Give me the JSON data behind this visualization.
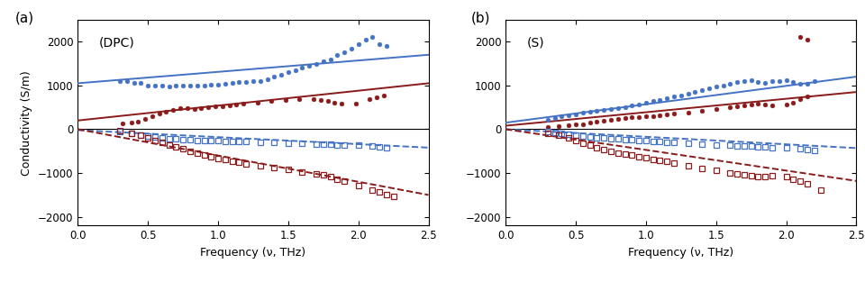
{
  "panel_a_label": "(DPC)",
  "panel_b_label": "(S)",
  "ylabel": "Conductivity (S/m)",
  "xlabel": "Frequency (ν, THz)",
  "xlim": [
    0,
    2.5
  ],
  "ylim": [
    -2200,
    2500
  ],
  "yticks": [
    -2000,
    -1000,
    0,
    1000,
    2000
  ],
  "xticks": [
    0,
    0.5,
    1.0,
    1.5,
    2.0,
    2.5
  ],
  "blue_color": "#4472C4",
  "red_color": "#8B1A1A",
  "panel_a": {
    "blue_solid_real": {
      "x": [
        0.3,
        0.35,
        0.4,
        0.45,
        0.5,
        0.55,
        0.6,
        0.65,
        0.7,
        0.75,
        0.8,
        0.85,
        0.9,
        0.95,
        1.0,
        1.05,
        1.1,
        1.15,
        1.2,
        1.25,
        1.3,
        1.35,
        1.4,
        1.45,
        1.5,
        1.55,
        1.6,
        1.65,
        1.7,
        1.75,
        1.8,
        1.85,
        1.9,
        1.95,
        2.0,
        2.05,
        2.1,
        2.15,
        2.2
      ],
      "y": [
        1100,
        1100,
        1050,
        1050,
        1000,
        1000,
        1000,
        980,
        1000,
        1000,
        1000,
        1000,
        1000,
        1020,
        1020,
        1030,
        1050,
        1080,
        1080,
        1100,
        1100,
        1150,
        1200,
        1250,
        1300,
        1350,
        1400,
        1450,
        1500,
        1550,
        1600,
        1700,
        1750,
        1850,
        1950,
        2050,
        2100,
        1950,
        1900
      ]
    },
    "blue_fit_real": {
      "x": [
        0.0,
        2.5
      ],
      "y": [
        1050,
        1700
      ]
    },
    "red_solid_real": {
      "x": [
        0.32,
        0.38,
        0.43,
        0.48,
        0.53,
        0.58,
        0.63,
        0.68,
        0.73,
        0.78,
        0.83,
        0.88,
        0.93,
        0.98,
        1.03,
        1.08,
        1.13,
        1.18,
        1.28,
        1.38,
        1.48,
        1.58,
        1.68,
        1.73,
        1.78,
        1.83,
        1.88,
        1.98,
        2.08,
        2.13,
        2.18
      ],
      "y": [
        130,
        150,
        180,
        230,
        290,
        350,
        410,
        450,
        480,
        480,
        470,
        490,
        510,
        520,
        530,
        550,
        570,
        580,
        610,
        640,
        660,
        680,
        690,
        670,
        640,
        610,
        590,
        590,
        690,
        720,
        770
      ]
    },
    "red_fit_real": {
      "x": [
        0.0,
        2.5
      ],
      "y": [
        200,
        1050
      ]
    },
    "blue_open_imag": {
      "x": [
        0.3,
        0.38,
        0.45,
        0.5,
        0.55,
        0.6,
        0.65,
        0.7,
        0.75,
        0.8,
        0.85,
        0.9,
        0.95,
        1.0,
        1.05,
        1.1,
        1.15,
        1.2,
        1.3,
        1.4,
        1.5,
        1.6,
        1.7,
        1.75,
        1.8,
        1.85,
        1.9,
        2.0,
        2.1,
        2.15,
        2.2
      ],
      "y": [
        -50,
        -100,
        -130,
        -160,
        -180,
        -200,
        -210,
        -220,
        -230,
        -240,
        -250,
        -255,
        -260,
        -265,
        -270,
        -275,
        -280,
        -285,
        -290,
        -300,
        -310,
        -320,
        -335,
        -340,
        -350,
        -355,
        -360,
        -370,
        -390,
        -400,
        -420
      ]
    },
    "blue_fit_imag": {
      "x": [
        0.0,
        2.5
      ],
      "y": [
        -20,
        -420
      ]
    },
    "red_open_imag": {
      "x": [
        0.3,
        0.38,
        0.45,
        0.5,
        0.55,
        0.6,
        0.65,
        0.7,
        0.75,
        0.8,
        0.85,
        0.9,
        0.95,
        1.0,
        1.05,
        1.1,
        1.15,
        1.2,
        1.3,
        1.4,
        1.5,
        1.6,
        1.7,
        1.75,
        1.8,
        1.85,
        1.9,
        2.0,
        2.1,
        2.15,
        2.2,
        2.25
      ],
      "y": [
        -40,
        -90,
        -140,
        -190,
        -250,
        -290,
        -360,
        -410,
        -450,
        -500,
        -550,
        -590,
        -630,
        -670,
        -700,
        -730,
        -760,
        -790,
        -830,
        -870,
        -920,
        -970,
        -1020,
        -1050,
        -1090,
        -1140,
        -1190,
        -1290,
        -1390,
        -1440,
        -1490,
        -1540
      ]
    },
    "red_fit_imag": {
      "x": [
        0.0,
        2.5
      ],
      "y": [
        0,
        -1500
      ]
    }
  },
  "panel_b": {
    "blue_solid_real": {
      "x": [
        0.3,
        0.35,
        0.4,
        0.45,
        0.5,
        0.55,
        0.6,
        0.65,
        0.7,
        0.75,
        0.8,
        0.85,
        0.9,
        0.95,
        1.0,
        1.05,
        1.1,
        1.15,
        1.2,
        1.25,
        1.3,
        1.35,
        1.4,
        1.45,
        1.5,
        1.55,
        1.6,
        1.65,
        1.7,
        1.75,
        1.8,
        1.85,
        1.9,
        1.95,
        2.0,
        2.05,
        2.1,
        2.15,
        2.2
      ],
      "y": [
        220,
        250,
        290,
        320,
        340,
        370,
        410,
        420,
        440,
        470,
        490,
        510,
        550,
        570,
        610,
        640,
        670,
        700,
        740,
        780,
        810,
        850,
        890,
        930,
        970,
        1000,
        1030,
        1070,
        1090,
        1120,
        1070,
        1060,
        1090,
        1090,
        1110,
        1070,
        1040,
        1040,
        1090
      ]
    },
    "blue_fit_real": {
      "x": [
        0.0,
        2.5
      ],
      "y": [
        150,
        1200
      ]
    },
    "red_solid_real": {
      "x": [
        0.3,
        0.38,
        0.45,
        0.5,
        0.55,
        0.6,
        0.65,
        0.7,
        0.75,
        0.8,
        0.85,
        0.9,
        0.95,
        1.0,
        1.05,
        1.1,
        1.15,
        1.2,
        1.3,
        1.4,
        1.5,
        1.6,
        1.65,
        1.7,
        1.75,
        1.8,
        1.85,
        1.9,
        2.0,
        2.05,
        2.1,
        2.15
      ],
      "y": [
        60,
        70,
        90,
        110,
        120,
        150,
        170,
        190,
        220,
        240,
        260,
        270,
        280,
        290,
        300,
        320,
        340,
        360,
        380,
        420,
        460,
        500,
        530,
        550,
        570,
        590,
        570,
        550,
        570,
        610,
        690,
        740
      ]
    },
    "red_solid_outlier": {
      "x": [
        2.1,
        2.15
      ],
      "y": [
        2100,
        2050
      ]
    },
    "red_fit_real": {
      "x": [
        0.0,
        2.5
      ],
      "y": [
        80,
        850
      ]
    },
    "blue_open_imag": {
      "x": [
        0.3,
        0.35,
        0.4,
        0.45,
        0.5,
        0.55,
        0.6,
        0.65,
        0.7,
        0.75,
        0.8,
        0.85,
        0.9,
        0.95,
        1.0,
        1.05,
        1.1,
        1.15,
        1.2,
        1.3,
        1.4,
        1.5,
        1.6,
        1.65,
        1.7,
        1.75,
        1.8,
        1.85,
        1.9,
        2.0,
        2.1,
        2.15,
        2.2
      ],
      "y": [
        -50,
        -70,
        -90,
        -110,
        -140,
        -150,
        -170,
        -190,
        -200,
        -210,
        -220,
        -230,
        -240,
        -250,
        -260,
        -270,
        -280,
        -290,
        -300,
        -320,
        -340,
        -360,
        -370,
        -380,
        -380,
        -390,
        -400,
        -410,
        -420,
        -430,
        -440,
        -460,
        -480
      ]
    },
    "blue_fit_imag": {
      "x": [
        0.0,
        2.5
      ],
      "y": [
        0,
        -430
      ]
    },
    "red_open_imag": {
      "x": [
        0.3,
        0.38,
        0.45,
        0.5,
        0.55,
        0.6,
        0.65,
        0.7,
        0.75,
        0.8,
        0.85,
        0.9,
        0.95,
        1.0,
        1.05,
        1.1,
        1.15,
        1.2,
        1.3,
        1.4,
        1.5,
        1.6,
        1.65,
        1.7,
        1.75,
        1.8,
        1.85,
        1.9,
        2.0,
        2.05,
        2.1,
        2.15,
        2.25
      ],
      "y": [
        -90,
        -140,
        -190,
        -250,
        -310,
        -370,
        -420,
        -460,
        -500,
        -540,
        -570,
        -590,
        -620,
        -650,
        -680,
        -710,
        -740,
        -770,
        -830,
        -890,
        -940,
        -990,
        -1020,
        -1040,
        -1060,
        -1080,
        -1090,
        -1070,
        -1090,
        -1140,
        -1190,
        -1240,
        -1390
      ]
    },
    "red_fit_imag": {
      "x": [
        0.0,
        2.5
      ],
      "y": [
        0,
        -1180
      ]
    }
  }
}
